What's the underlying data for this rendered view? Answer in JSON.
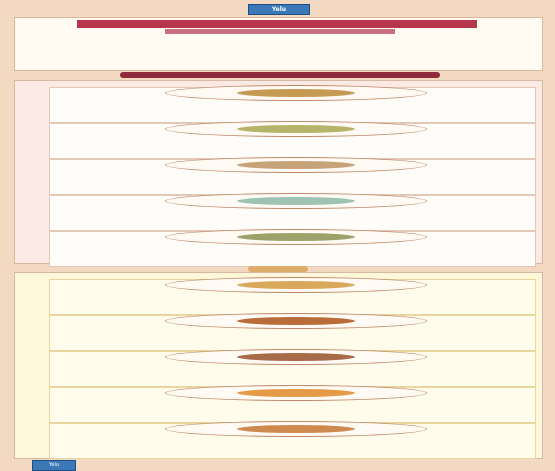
{
  "badge": "Yelu",
  "header": {
    "title": "",
    "subtitle": "",
    "intro": ""
  },
  "section_band": "",
  "section_label": "",
  "colors": {
    "pink_bg": "#fbe9e3",
    "yellow_bg": "#fff7da",
    "accent": "#8e2c3d",
    "badge": "#3a78b8"
  },
  "pink_cards": [
    {
      "dish_color": "#c59a52",
      "left": [
        "",
        "",
        ""
      ],
      "right": [
        "",
        "",
        ""
      ]
    },
    {
      "dish_color": "#b6b36a",
      "left": [
        "",
        "",
        ""
      ],
      "right": [
        "",
        "",
        ""
      ]
    },
    {
      "dish_color": "#c7a37a",
      "left": [
        "",
        "",
        ""
      ],
      "right": [
        "",
        "",
        ""
      ]
    },
    {
      "dish_color": "#9ec3b1",
      "left": [
        "",
        "",
        ""
      ],
      "right": [
        "",
        "",
        ""
      ]
    },
    {
      "dish_color": "#9ca26a",
      "left": [
        "",
        "",
        ""
      ],
      "right": [
        "",
        "",
        ""
      ]
    }
  ],
  "yellow_cards": [
    {
      "dish_color": "#d8a85c",
      "left": [
        "",
        "",
        ""
      ],
      "right": [
        "",
        "",
        ""
      ]
    },
    {
      "dish_color": "#b96d3a",
      "left": [
        "",
        "",
        ""
      ],
      "right": [
        "",
        "",
        ""
      ]
    },
    {
      "dish_color": "#a86b4a",
      "left": [
        "",
        "",
        ""
      ],
      "right": [
        "",
        "",
        ""
      ]
    },
    {
      "dish_color": "#e49a46",
      "left": [
        "",
        "",
        ""
      ],
      "right": [
        "",
        "",
        ""
      ]
    },
    {
      "dish_color": "#cf8a50",
      "left": [
        "",
        "",
        ""
      ],
      "right": [
        "",
        "",
        ""
      ]
    }
  ],
  "footer": {
    "logo": "Yelu",
    "text": ""
  }
}
